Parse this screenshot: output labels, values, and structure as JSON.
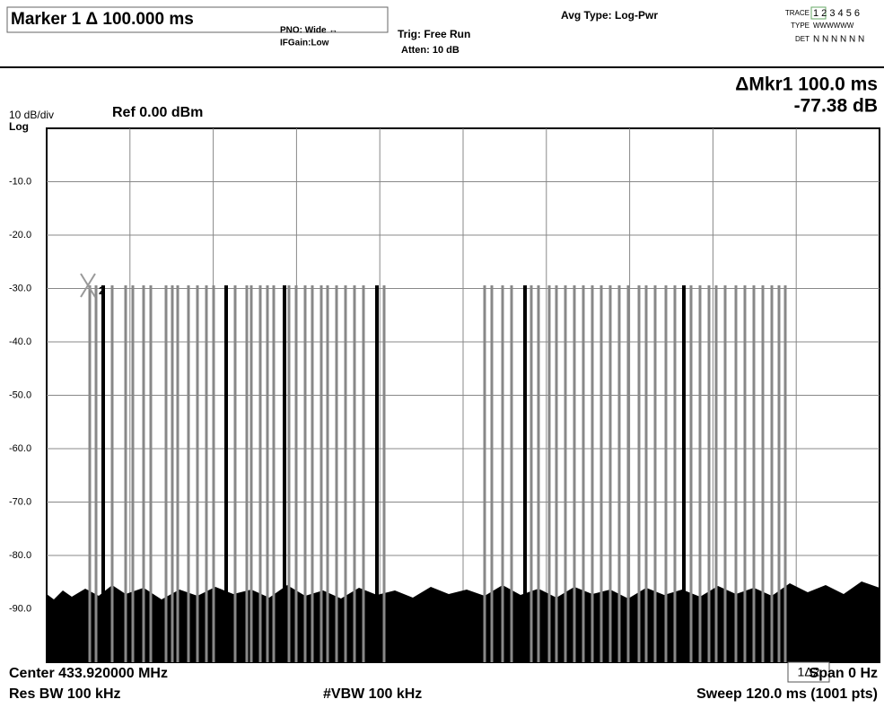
{
  "header": {
    "marker": "Marker 1 Δ 100.000 ms",
    "pno": "PNO: Wide ↔",
    "ifgain": "IFGain:Low",
    "trig": "Trig: Free Run",
    "atten": "Atten: 10 dB",
    "avg_type": "Avg Type: Log-Pwr",
    "trace_label": "TRACE",
    "trace_nums": "1 2 3 4 5 6",
    "type_label": "TYPE",
    "type_vals": "WWWWWW",
    "det_label": "DET",
    "det_vals": "N N N N N N"
  },
  "readout": {
    "delta_marker": "ΔMkr1 100.0 ms",
    "delta_value": "-77.38 dB"
  },
  "scale": {
    "per_div": "10 dB/div",
    "ref": "Ref 0.00 dBm",
    "log": "Log"
  },
  "y_labels": [
    "-10.0",
    "-20.0",
    "-30.0",
    "-40.0",
    "-50.0",
    "-60.0",
    "-70.0",
    "-80.0",
    "-90.0"
  ],
  "markers": {
    "delta_box": "1Δ2",
    "marker2": "2"
  },
  "footer": {
    "center": "Center 433.920000 MHz",
    "span": "Span 0 Hz",
    "res_bw": "Res BW 100 kHz",
    "vbw": "#VBW 100 kHz",
    "sweep": "Sweep  120.0 ms (1001 pts)"
  }
}
